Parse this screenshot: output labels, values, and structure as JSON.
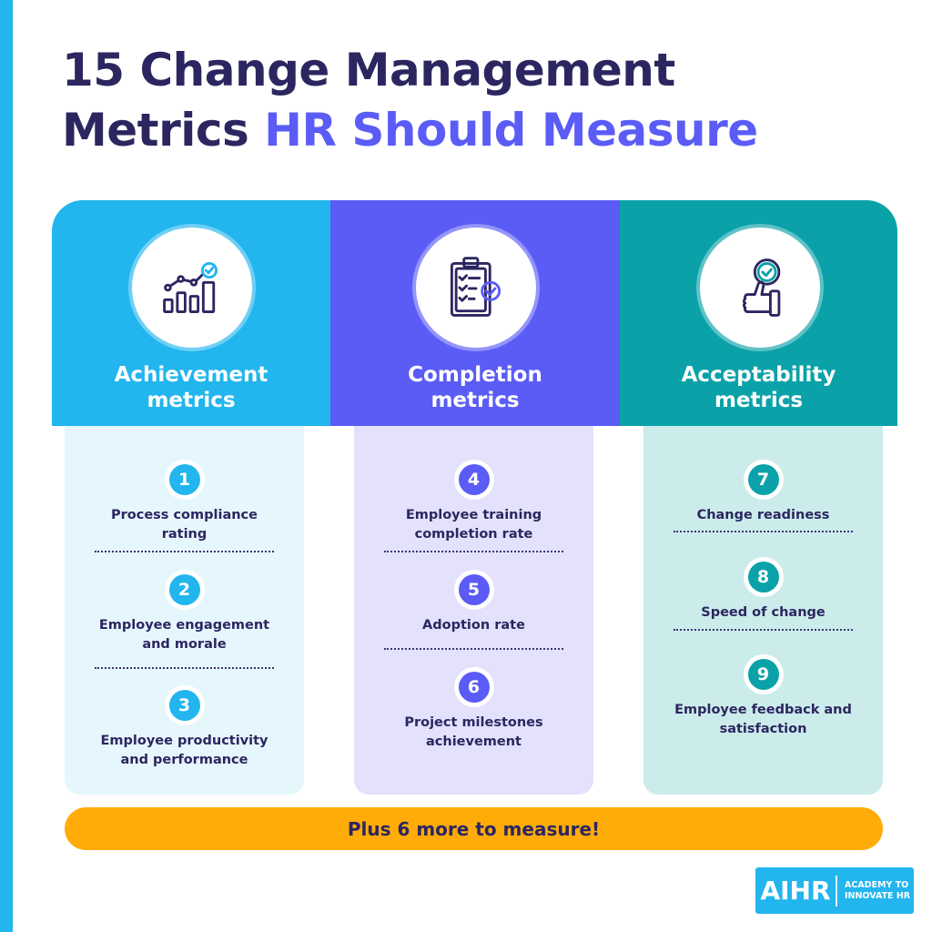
{
  "title": {
    "line1": "15 Change Management",
    "line2_dark": "Metrics ",
    "line2_accent": "HR Should Measure"
  },
  "colors": {
    "dark_text": "#2c2660",
    "accent_purple": "#5b5cf6",
    "achievement": "#22b5ee",
    "completion": "#5b5cf6",
    "acceptability": "#0aa2a8",
    "achievement_panel": "#e6f6fd",
    "completion_panel": "#e3e1fc",
    "acceptability_panel": "#cbeceb",
    "orange": "#ffac08"
  },
  "categories": [
    {
      "title_line1": "Achievement",
      "title_line2": "metrics",
      "icon": "bar-chart-trend-icon",
      "metrics": [
        {
          "number": "1",
          "line1": "Process compliance",
          "line2": "rating"
        },
        {
          "number": "2",
          "line1": "Employee engagement",
          "line2": "and morale"
        },
        {
          "number": "3",
          "line1": "Employee productivity",
          "line2": "and performance"
        }
      ]
    },
    {
      "title_line1": "Completion",
      "title_line2": "metrics",
      "icon": "clipboard-checklist-icon",
      "metrics": [
        {
          "number": "4",
          "line1": "Employee training",
          "line2": "completion rate"
        },
        {
          "number": "5",
          "line1": "Adoption rate",
          "line2": ""
        },
        {
          "number": "6",
          "line1": "Project milestones",
          "line2": "achievement"
        }
      ]
    },
    {
      "title_line1": "Acceptability",
      "title_line2": "metrics",
      "icon": "thumbs-up-check-icon",
      "metrics": [
        {
          "number": "7",
          "line1": "Change readiness",
          "line2": ""
        },
        {
          "number": "8",
          "line1": "Speed of change",
          "line2": ""
        },
        {
          "number": "9",
          "line1": "Employee feedback and",
          "line2": "satisfaction"
        }
      ]
    }
  ],
  "footer_banner": "Plus 6 more to measure!",
  "logo": {
    "mark": "AIHR",
    "line1": "ACADEMY TO",
    "line2": "INNOVATE HR"
  }
}
